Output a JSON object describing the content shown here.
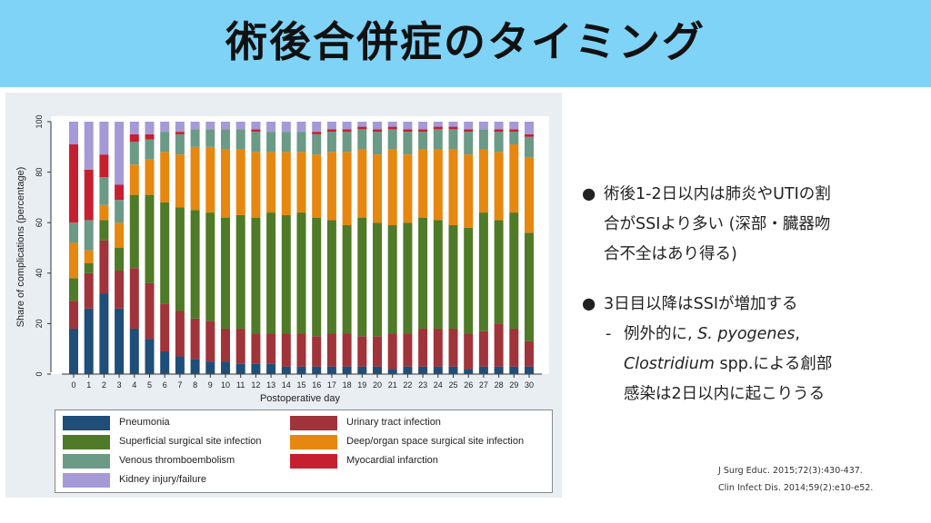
{
  "title": "術後合併症のタイミング",
  "bullets": [
    {
      "lines": [
        "術後1-2日以内は肺炎やUTIの割",
        "合がSSIより多い (深部・臓器吻",
        "合不全はあり得る)"
      ]
    },
    {
      "lines": [
        "3日目以降はSSIが増加する"
      ],
      "sub": {
        "line1_prefix": "例外的に, ",
        "line1_italic": "S. pyogenes",
        "line1_suffix": ",",
        "line2_italic": "Clostridium",
        "line2_suffix": " spp.による創部",
        "line3": "感染は2日以内に起こりうる"
      }
    }
  ],
  "refs": [
    "J Surg Educ. 2015;72(3):430-437.",
    "Clin Infect Dis. 2014;59(2):e10-e52."
  ],
  "chart_data": {
    "type": "bar",
    "stacked": true,
    "xlabel": "Postoperative day",
    "ylabel": "Share of complications (percentage)",
    "ylim": [
      0,
      100
    ],
    "yticks": [
      "0",
      "20",
      "40",
      "60",
      "80",
      "100"
    ],
    "categories": [
      "0",
      "1",
      "2",
      "3",
      "4",
      "5",
      "6",
      "7",
      "8",
      "9",
      "10",
      "11",
      "12",
      "13",
      "14",
      "15",
      "16",
      "17",
      "18",
      "19",
      "20",
      "21",
      "22",
      "23",
      "24",
      "25",
      "26",
      "27",
      "28",
      "29",
      "30"
    ],
    "series": [
      {
        "name": "Pneumonia",
        "color": "#1f4e79",
        "values": [
          18,
          26,
          32,
          26,
          18,
          14,
          9,
          7,
          6,
          5,
          5,
          4,
          4,
          4,
          3,
          3,
          3,
          3,
          3,
          3,
          3,
          2,
          3,
          3,
          3,
          3,
          2,
          3,
          3,
          3,
          3
        ]
      },
      {
        "name": "Urinary tract infection",
        "color": "#a0343a",
        "values": [
          11,
          14,
          21,
          15,
          24,
          22,
          19,
          18,
          16,
          16,
          13,
          14,
          12,
          12,
          13,
          13,
          12,
          13,
          13,
          12,
          12,
          14,
          13,
          15,
          15,
          15,
          14,
          14,
          17,
          15,
          10
        ]
      },
      {
        "name": "Superficial surgical site infection",
        "color": "#4f7a28",
        "values": [
          9,
          4,
          8,
          9,
          29,
          35,
          40,
          41,
          43,
          43,
          44,
          45,
          46,
          48,
          47,
          48,
          47,
          45,
          43,
          47,
          45,
          43,
          44,
          44,
          43,
          41,
          42,
          47,
          41,
          46,
          43
        ]
      },
      {
        "name": "Deep/organ space surgical site infection",
        "color": "#e6870f",
        "values": [
          14,
          5,
          6,
          10,
          12,
          14,
          20,
          21,
          25,
          26,
          27,
          26,
          26,
          24,
          25,
          24,
          25,
          27,
          29,
          27,
          27,
          30,
          27,
          27,
          28,
          30,
          29,
          25,
          27,
          27,
          30
        ]
      },
      {
        "name": "Venous thromboembolism",
        "color": "#6b9a86",
        "values": [
          8,
          12,
          11,
          9,
          9,
          8,
          8,
          8,
          7,
          7,
          8,
          8,
          8,
          8,
          8,
          8,
          8,
          8,
          8,
          8,
          9,
          8,
          9,
          7,
          8,
          8,
          9,
          8,
          8,
          5,
          8
        ]
      },
      {
        "name": "Myocardial infarction",
        "color": "#c62030",
        "values": [
          31,
          20,
          9,
          6,
          3,
          2,
          0,
          1,
          0,
          0,
          0,
          0,
          1,
          0,
          0,
          0,
          1,
          1,
          1,
          1,
          1,
          1,
          1,
          1,
          1,
          1,
          1,
          0,
          1,
          1,
          1
        ]
      },
      {
        "name": "Kidney injury/failure",
        "color": "#a59ad6",
        "values": [
          9,
          19,
          13,
          25,
          5,
          5,
          4,
          4,
          3,
          3,
          3,
          3,
          3,
          4,
          4,
          4,
          4,
          3,
          3,
          2,
          3,
          2,
          3,
          3,
          2,
          2,
          3,
          3,
          3,
          3,
          5
        ]
      }
    ],
    "legend_layout": "two-column box below plot",
    "grid": false
  }
}
